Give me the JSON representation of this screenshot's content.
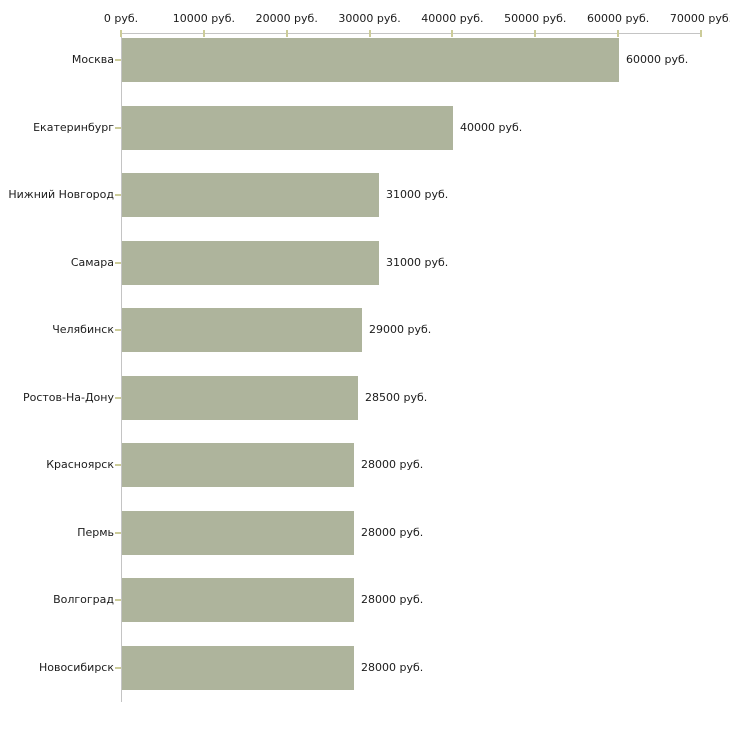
{
  "chart_data": {
    "type": "bar",
    "orientation": "horizontal",
    "title": "",
    "xlabel": "",
    "ylabel": "",
    "unit": "руб.",
    "categories": [
      "Москва",
      "Екатеринбург",
      "Нижний Новгород",
      "Самара",
      "Челябинск",
      "Ростов-На-Дону",
      "Красноярск",
      "Пермь",
      "Волгоград",
      "Новосибирск"
    ],
    "values": [
      60000,
      40000,
      31000,
      31000,
      29000,
      28500,
      28000,
      28000,
      28000,
      28000
    ],
    "value_labels": [
      "60000 руб.",
      "40000 руб.",
      "31000 руб.",
      "31000 руб.",
      "29000 руб.",
      "28500 руб.",
      "28000 руб.",
      "28000 руб.",
      "28000 руб.",
      "28000 руб."
    ],
    "x_ticks": [
      0,
      10000,
      20000,
      30000,
      40000,
      50000,
      60000,
      70000
    ],
    "x_tick_labels": [
      "0 руб.",
      "10000 руб.",
      "20000 руб.",
      "30000 руб.",
      "40000 руб.",
      "50000 руб.",
      "60000 руб.",
      "70000 руб."
    ],
    "xlim": [
      0,
      70000
    ],
    "grid": false,
    "legend": null,
    "axis_position": "top",
    "colors": {
      "bar": "#aeb49c",
      "axis": "#c4c4c4",
      "tick": "#cccc99",
      "text": "#1c1c1c",
      "background": "#ffffff"
    }
  }
}
